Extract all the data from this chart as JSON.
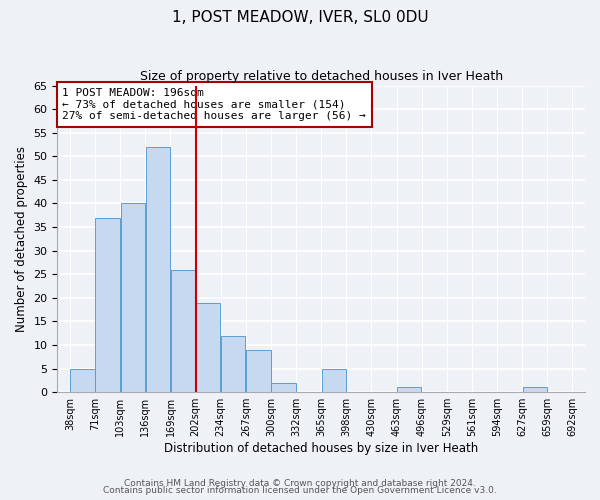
{
  "title": "1, POST MEADOW, IVER, SL0 0DU",
  "subtitle": "Size of property relative to detached houses in Iver Heath",
  "xlabel": "Distribution of detached houses by size in Iver Heath",
  "ylabel": "Number of detached properties",
  "bar_color": "#c6d9f1",
  "bar_edge_color": "#5a9fd4",
  "vline_color": "#cc0000",
  "annotation_title": "1 POST MEADOW: 196sqm",
  "annotation_line1": "← 73% of detached houses are smaller (154)",
  "annotation_line2": "27% of semi-detached houses are larger (56) →",
  "tick_labels": [
    "38sqm",
    "71sqm",
    "103sqm",
    "136sqm",
    "169sqm",
    "202sqm",
    "234sqm",
    "267sqm",
    "300sqm",
    "332sqm",
    "365sqm",
    "398sqm",
    "430sqm",
    "463sqm",
    "496sqm",
    "529sqm",
    "561sqm",
    "594sqm",
    "627sqm",
    "659sqm",
    "692sqm"
  ],
  "counts": [
    5,
    37,
    40,
    52,
    26,
    19,
    12,
    9,
    2,
    0,
    5,
    0,
    0,
    1,
    0,
    0,
    0,
    0,
    1,
    0
  ],
  "vline_tick_index": 5,
  "ylim": [
    0,
    65
  ],
  "yticks": [
    0,
    5,
    10,
    15,
    20,
    25,
    30,
    35,
    40,
    45,
    50,
    55,
    60,
    65
  ],
  "footer1": "Contains HM Land Registry data © Crown copyright and database right 2024.",
  "footer2": "Contains public sector information licensed under the Open Government Licence v3.0.",
  "background_color": "#eef2f7"
}
